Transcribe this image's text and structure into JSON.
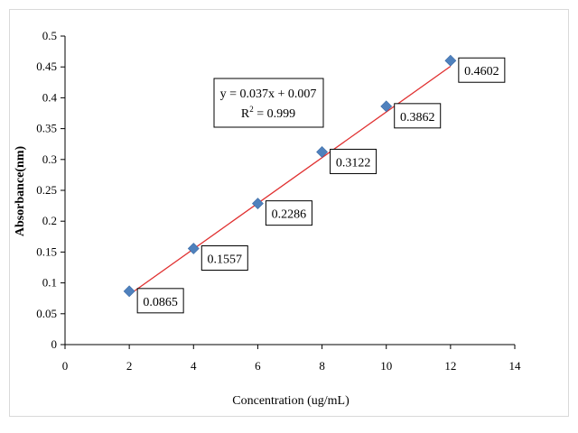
{
  "chart_data": {
    "type": "scatter",
    "title": "",
    "xlabel": "Concentration (ug/mL)",
    "ylabel": "Absorbance(nm)",
    "xlim": [
      0,
      14
    ],
    "ylim": [
      0,
      0.5
    ],
    "x_ticks": [
      "0",
      "2",
      "4",
      "6",
      "8",
      "10",
      "12",
      "14"
    ],
    "y_ticks": [
      "0",
      "0.05",
      "0.1",
      "0.15",
      "0.2",
      "0.25",
      "0.3",
      "0.35",
      "0.4",
      "0.45",
      "0.5"
    ],
    "grid": false,
    "legend": "none",
    "marker_color": "#4f81bd",
    "trendline_color": "#e03030",
    "points": [
      {
        "x": 2,
        "y": 0.0865,
        "label": "0.0865"
      },
      {
        "x": 4,
        "y": 0.1557,
        "label": "0.1557"
      },
      {
        "x": 6,
        "y": 0.2286,
        "label": "0.2286"
      },
      {
        "x": 8,
        "y": 0.3122,
        "label": "0.3122"
      },
      {
        "x": 10,
        "y": 0.3862,
        "label": "0.3862"
      },
      {
        "x": 12,
        "y": 0.4602,
        "label": "0.4602"
      }
    ],
    "trendline": {
      "slope": 0.037,
      "intercept": 0.007,
      "x_range": [
        2,
        12
      ],
      "equation": "y = 0.037x + 0.007",
      "r_squared_prefix": "R",
      "r_squared_exponent": "2",
      "r_squared_value": " = 0.999"
    }
  }
}
